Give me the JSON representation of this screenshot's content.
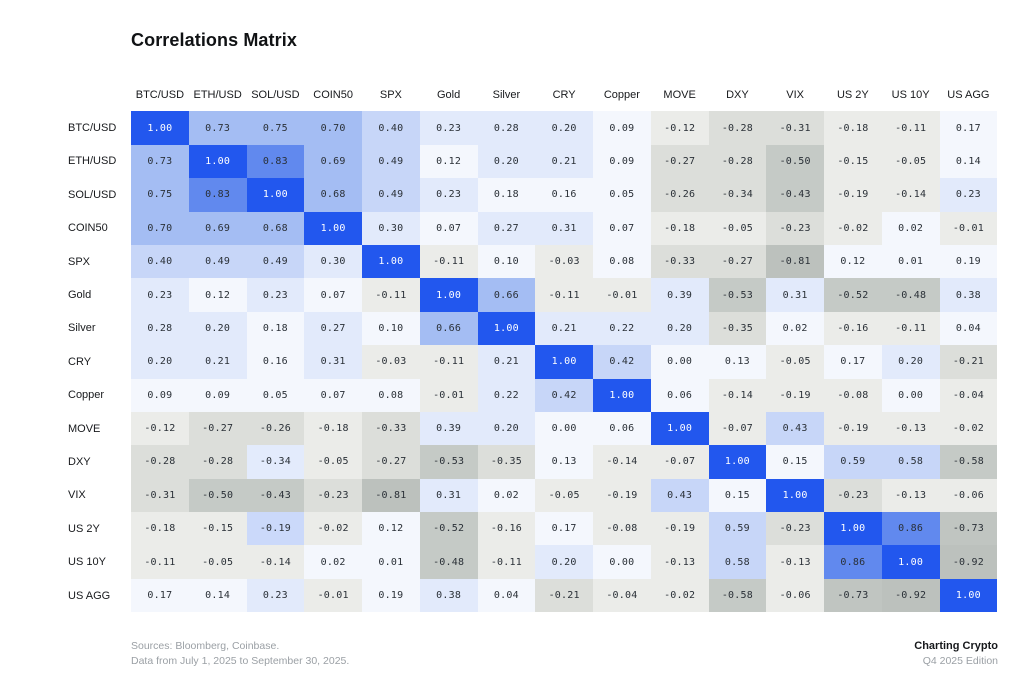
{
  "page": {
    "title": "Correlations Matrix",
    "background": "#ffffff"
  },
  "chart_data": {
    "type": "heatmap",
    "title": "Correlations Matrix",
    "categories": [
      "BTC/USD",
      "ETH/USD",
      "SOL/USD",
      "COIN50",
      "SPX",
      "Gold",
      "Silver",
      "CRY",
      "Copper",
      "MOVE",
      "DXY",
      "VIX",
      "US 2Y",
      "US 10Y",
      "US AGG"
    ],
    "matrix": [
      [
        1.0,
        0.73,
        0.75,
        0.7,
        0.4,
        0.23,
        0.28,
        0.2,
        0.09,
        -0.12,
        -0.28,
        -0.31,
        -0.18,
        -0.11,
        0.17
      ],
      [
        0.73,
        1.0,
        0.83,
        0.69,
        0.49,
        0.12,
        0.2,
        0.21,
        0.09,
        -0.27,
        -0.28,
        -0.5,
        -0.15,
        -0.05,
        0.14
      ],
      [
        0.75,
        0.83,
        1.0,
        0.68,
        0.49,
        0.23,
        0.18,
        0.16,
        0.05,
        -0.26,
        -0.34,
        -0.43,
        -0.19,
        -0.14,
        0.23
      ],
      [
        0.7,
        0.69,
        0.68,
        1.0,
        0.3,
        0.07,
        0.27,
        0.31,
        0.07,
        -0.18,
        -0.05,
        -0.23,
        -0.02,
        0.02,
        -0.01
      ],
      [
        0.4,
        0.49,
        0.49,
        0.3,
        1.0,
        -0.11,
        0.1,
        -0.03,
        0.08,
        -0.33,
        -0.27,
        -0.81,
        0.12,
        0.01,
        0.19
      ],
      [
        0.23,
        0.12,
        0.23,
        0.07,
        -0.11,
        1.0,
        0.66,
        -0.11,
        -0.01,
        0.39,
        -0.53,
        0.31,
        -0.52,
        -0.48,
        0.38
      ],
      [
        0.28,
        0.2,
        0.18,
        0.27,
        0.1,
        0.66,
        1.0,
        0.21,
        0.22,
        0.2,
        -0.35,
        0.02,
        -0.16,
        -0.11,
        0.04
      ],
      [
        0.2,
        0.21,
        0.16,
        0.31,
        -0.03,
        -0.11,
        0.21,
        1.0,
        0.42,
        0.0,
        0.13,
        -0.05,
        0.17,
        0.2,
        -0.21
      ],
      [
        0.09,
        0.09,
        0.05,
        0.07,
        0.08,
        -0.01,
        0.22,
        0.42,
        1.0,
        0.06,
        -0.14,
        -0.19,
        -0.08,
        0.0,
        -0.04
      ],
      [
        -0.12,
        -0.27,
        -0.26,
        -0.18,
        -0.33,
        0.39,
        0.2,
        0.0,
        0.06,
        1.0,
        -0.07,
        0.43,
        -0.19,
        -0.13,
        -0.02
      ],
      [
        -0.28,
        -0.28,
        -0.34,
        -0.05,
        -0.27,
        -0.53,
        -0.35,
        0.13,
        -0.14,
        -0.07,
        1.0,
        0.15,
        0.59,
        0.58,
        -0.58
      ],
      [
        -0.31,
        -0.5,
        -0.43,
        -0.23,
        -0.81,
        0.31,
        0.02,
        -0.05,
        -0.19,
        0.43,
        0.15,
        1.0,
        -0.23,
        -0.13,
        -0.06
      ],
      [
        -0.18,
        -0.15,
        -0.19,
        -0.02,
        0.12,
        -0.52,
        -0.16,
        0.17,
        -0.08,
        -0.19,
        0.59,
        -0.23,
        1.0,
        0.86,
        -0.73
      ],
      [
        -0.11,
        -0.05,
        -0.14,
        0.02,
        0.01,
        -0.48,
        -0.11,
        0.2,
        0.0,
        -0.13,
        0.58,
        -0.13,
        0.86,
        1.0,
        -0.92
      ],
      [
        0.17,
        0.14,
        0.23,
        -0.01,
        0.19,
        0.38,
        0.04,
        -0.21,
        -0.04,
        -0.02,
        -0.58,
        -0.06,
        -0.73,
        -0.92,
        1.0
      ]
    ],
    "value_format": "two_decimals",
    "legend": "none",
    "grid": false,
    "color_scale": {
      "diagonal": "#2257ee",
      "diagonal_text": "#ffffff",
      "cell_text": "#2a3037",
      "positive_bins": [
        [
          0.0,
          "#f4f7fd"
        ],
        [
          0.2,
          "#e2eafb"
        ],
        [
          0.4,
          "#c7d6f8"
        ],
        [
          0.6,
          "#a4bdf3"
        ],
        [
          0.8,
          "#6189ee"
        ]
      ],
      "negative_bins": [
        [
          0.0,
          "#ebece9"
        ],
        [
          0.2,
          "#dcdeda"
        ],
        [
          0.4,
          "#c5cac6"
        ],
        [
          0.6,
          "#c0c5c1"
        ],
        [
          0.8,
          "#bcc1bd"
        ]
      ]
    },
    "cell_color_overrides": [
      {
        "row": "DXY",
        "col": "SOL/USD",
        "color": "#e3ebfc"
      },
      {
        "row": "US 2Y",
        "col": "SOL/USD",
        "color": "#cbd9fa"
      }
    ]
  },
  "footer": {
    "sources_line1": "Sources: Bloomberg, Coinbase.",
    "sources_line2": "Data from July 1, 2025 to September 30, 2025.",
    "brand": "Charting Crypto",
    "edition": "Q4 2025 Edition"
  }
}
